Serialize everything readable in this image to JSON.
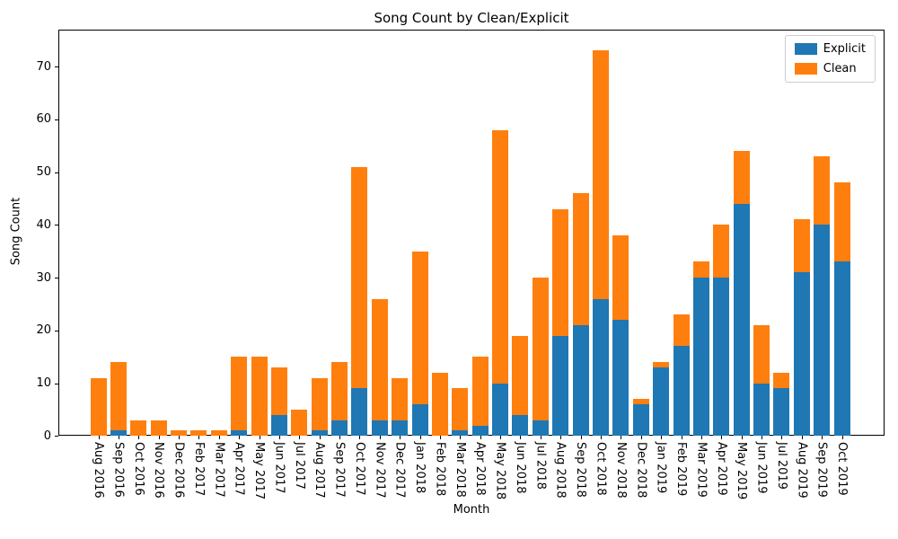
{
  "figure": {
    "title": "Song Count by Clean/Explicit",
    "xlabel": "Month",
    "ylabel": "Song Count"
  },
  "chart_data": {
    "type": "bar",
    "stacked": true,
    "title": "Song Count by Clean/Explicit",
    "xlabel": "Month",
    "ylabel": "Song Count",
    "grid": false,
    "legend_position": "upper right",
    "ylim": [
      0,
      77
    ],
    "y_ticks": [
      0,
      10,
      20,
      30,
      40,
      50,
      60,
      70
    ],
    "categories": [
      "Aug 2016",
      "Sep 2016",
      "Oct 2016",
      "Nov 2016",
      "Dec 2016",
      "Feb 2017",
      "Mar 2017",
      "Apr 2017",
      "May 2017",
      "Jun 2017",
      "Jul 2017",
      "Aug 2017",
      "Sep 2017",
      "Oct 2017",
      "Nov 2017",
      "Dec 2017",
      "Jan 2018",
      "Feb 2018",
      "Mar 2018",
      "Apr 2018",
      "May 2018",
      "Jun 2018",
      "Jul 2018",
      "Aug 2018",
      "Sep 2018",
      "Oct 2018",
      "Nov 2018",
      "Dec 2018",
      "Jan 2019",
      "Feb 2019",
      "Mar 2019",
      "Apr 2019",
      "May 2019",
      "Jun 2019",
      "Jul 2019",
      "Aug 2019",
      "Sep 2019",
      "Oct 2019"
    ],
    "series": [
      {
        "name": "Explicit",
        "color": "#1f77b4",
        "values": [
          0,
          1,
          0,
          0,
          0,
          0,
          0,
          1,
          0,
          4,
          0,
          1,
          3,
          9,
          3,
          3,
          6,
          0,
          1,
          2,
          10,
          4,
          3,
          19,
          21,
          26,
          22,
          6,
          13,
          17,
          30,
          30,
          44,
          10,
          9,
          31,
          40,
          33
        ]
      },
      {
        "name": "Clean",
        "color": "#ff7f0e",
        "values": [
          11,
          13,
          3,
          3,
          1,
          1,
          1,
          14,
          15,
          9,
          5,
          10,
          11,
          42,
          23,
          8,
          29,
          12,
          8,
          13,
          48,
          15,
          27,
          24,
          25,
          47,
          16,
          1,
          1,
          6,
          3,
          10,
          10,
          11,
          3,
          10,
          13,
          15
        ]
      }
    ],
    "totals": [
      11,
      14,
      3,
      3,
      1,
      1,
      1,
      15,
      15,
      13,
      5,
      11,
      14,
      51,
      26,
      11,
      35,
      12,
      9,
      15,
      58,
      19,
      30,
      43,
      46,
      73,
      38,
      7,
      14,
      23,
      33,
      40,
      54,
      21,
      12,
      41,
      53,
      48
    ]
  }
}
